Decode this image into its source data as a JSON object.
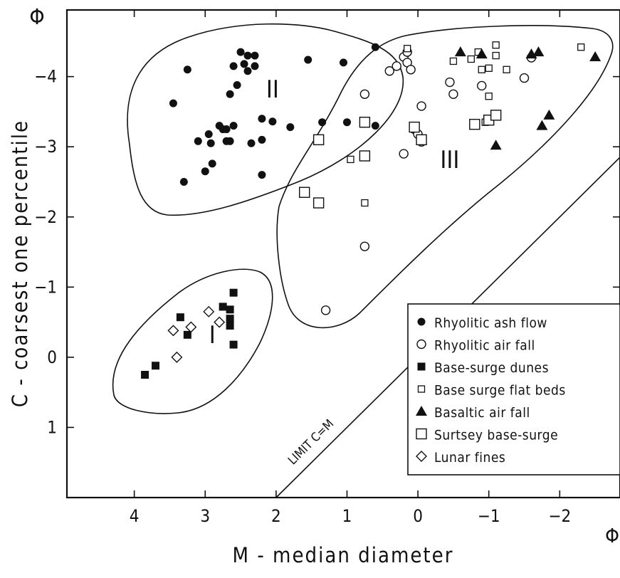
{
  "chart_data": {
    "type": "scatter",
    "xlabel": "M - median diameter",
    "ylabel": "C - coarsest one percentile",
    "x_unit_label": "Φ",
    "y_unit_label": "Φ",
    "xlim": [
      4.95,
      -2.85
    ],
    "ylim": [
      2.0,
      -4.95
    ],
    "x_ticks": [
      4,
      3,
      2,
      1,
      0,
      -1,
      -2
    ],
    "x_tick_labels": [
      "4",
      "3",
      "2",
      "1",
      "0",
      "−1",
      "−2"
    ],
    "y_ticks": [
      1,
      0,
      -1,
      -2,
      -3,
      -4
    ],
    "y_tick_labels": [
      "1",
      "0",
      "−1",
      "−2",
      "−3",
      "−4"
    ],
    "grid": false,
    "legend_position": "lower-right",
    "region_labels": [
      {
        "text": "I",
        "x": 2.9,
        "y": -0.2
      },
      {
        "text": "II",
        "x": 2.05,
        "y": -3.7
      },
      {
        "text": "III",
        "x": -0.45,
        "y": -2.7
      }
    ],
    "limit_line": {
      "label": "LIMIT C=M",
      "x": [
        2.0,
        -2.85
      ],
      "y": [
        2.0,
        -2.85
      ]
    },
    "series": [
      {
        "name": "Rhyolitic ash flow",
        "marker": "filled-circle",
        "points": [
          [
            3.45,
            -3.62
          ],
          [
            3.25,
            -4.1
          ],
          [
            3.3,
            -2.5
          ],
          [
            3.1,
            -3.08
          ],
          [
            3.0,
            -2.65
          ],
          [
            2.92,
            -3.05
          ],
          [
            2.95,
            -3.18
          ],
          [
            2.9,
            -2.76
          ],
          [
            2.8,
            -3.3
          ],
          [
            2.75,
            -3.25
          ],
          [
            2.7,
            -3.08
          ],
          [
            2.7,
            -3.25
          ],
          [
            2.65,
            -3.75
          ],
          [
            2.6,
            -3.3
          ],
          [
            2.6,
            -4.15
          ],
          [
            2.55,
            -3.88
          ],
          [
            2.45,
            -4.18
          ],
          [
            2.4,
            -4.08
          ],
          [
            2.4,
            -4.3
          ],
          [
            2.35,
            -3.05
          ],
          [
            2.5,
            -4.35
          ],
          [
            2.3,
            -4.15
          ],
          [
            2.3,
            -4.3
          ],
          [
            2.2,
            -3.4
          ],
          [
            2.2,
            -3.1
          ],
          [
            2.2,
            -2.6
          ],
          [
            2.05,
            -3.36
          ],
          [
            1.8,
            -3.28
          ],
          [
            1.55,
            -4.24
          ],
          [
            1.35,
            -3.35
          ],
          [
            1.05,
            -4.2
          ],
          [
            1.0,
            -3.35
          ],
          [
            0.6,
            -4.42
          ],
          [
            0.6,
            -3.3
          ],
          [
            2.65,
            -3.08
          ]
        ]
      },
      {
        "name": "Rhyolitic air fall",
        "marker": "open-circle",
        "points": [
          [
            0.75,
            -3.75
          ],
          [
            0.75,
            -1.58
          ],
          [
            1.3,
            -0.67
          ],
          [
            0.4,
            -4.08
          ],
          [
            0.3,
            -4.15
          ],
          [
            0.2,
            -4.28
          ],
          [
            0.15,
            -4.35
          ],
          [
            0.15,
            -4.2
          ],
          [
            0.1,
            -4.1
          ],
          [
            0.2,
            -2.9
          ],
          [
            -0.05,
            -3.58
          ],
          [
            0.05,
            -3.25
          ],
          [
            0.0,
            -3.18
          ],
          [
            -0.05,
            -3.07
          ],
          [
            -0.45,
            -3.92
          ],
          [
            -0.5,
            -3.75
          ],
          [
            -0.9,
            -3.87
          ],
          [
            -1.5,
            -3.98
          ],
          [
            -1.6,
            -4.27
          ]
        ]
      },
      {
        "name": "Base-surge dunes",
        "marker": "filled-square",
        "points": [
          [
            3.85,
            0.25
          ],
          [
            3.7,
            0.12
          ],
          [
            3.35,
            -0.57
          ],
          [
            3.25,
            -0.32
          ],
          [
            2.75,
            -0.72
          ],
          [
            2.65,
            -0.45
          ],
          [
            2.65,
            -0.55
          ],
          [
            2.65,
            -0.68
          ],
          [
            2.6,
            -0.92
          ],
          [
            2.6,
            -0.18
          ]
        ]
      },
      {
        "name": "Base surge flat beds",
        "marker": "open-square-small",
        "points": [
          [
            0.15,
            -4.4
          ],
          [
            -0.5,
            -4.22
          ],
          [
            -0.75,
            -4.25
          ],
          [
            -0.9,
            -4.1
          ],
          [
            -1.0,
            -4.12
          ],
          [
            -1.1,
            -4.3
          ],
          [
            -1.1,
            -4.45
          ],
          [
            -1.25,
            -4.1
          ],
          [
            -0.85,
            -4.35
          ],
          [
            -1.0,
            -3.72
          ],
          [
            -0.95,
            -3.35
          ],
          [
            -2.3,
            -4.42
          ],
          [
            0.95,
            -2.82
          ],
          [
            0.75,
            -2.2
          ]
        ]
      },
      {
        "name": "Basaltic air fall",
        "marker": "filled-triangle",
        "points": [
          [
            -0.6,
            -4.35
          ],
          [
            -0.9,
            -4.32
          ],
          [
            -1.6,
            -4.32
          ],
          [
            -1.7,
            -4.35
          ],
          [
            -2.5,
            -4.28
          ],
          [
            -1.75,
            -3.3
          ],
          [
            -1.85,
            -3.45
          ],
          [
            -1.1,
            -3.02
          ]
        ]
      },
      {
        "name": "Surtsey base-surge",
        "marker": "open-square",
        "points": [
          [
            1.4,
            -3.1
          ],
          [
            0.75,
            -3.35
          ],
          [
            0.75,
            -2.87
          ],
          [
            1.6,
            -2.35
          ],
          [
            1.4,
            -2.2
          ],
          [
            0.05,
            -3.28
          ],
          [
            -0.05,
            -3.1
          ],
          [
            -0.8,
            -3.32
          ],
          [
            -1.0,
            -3.38
          ],
          [
            -1.1,
            -3.45
          ]
        ]
      },
      {
        "name": "Lunar fines",
        "marker": "open-diamond",
        "points": [
          [
            3.45,
            -0.38
          ],
          [
            3.4,
            0.0
          ],
          [
            3.2,
            -0.43
          ],
          [
            2.8,
            -0.5
          ],
          [
            2.95,
            -0.65
          ]
        ]
      }
    ]
  }
}
